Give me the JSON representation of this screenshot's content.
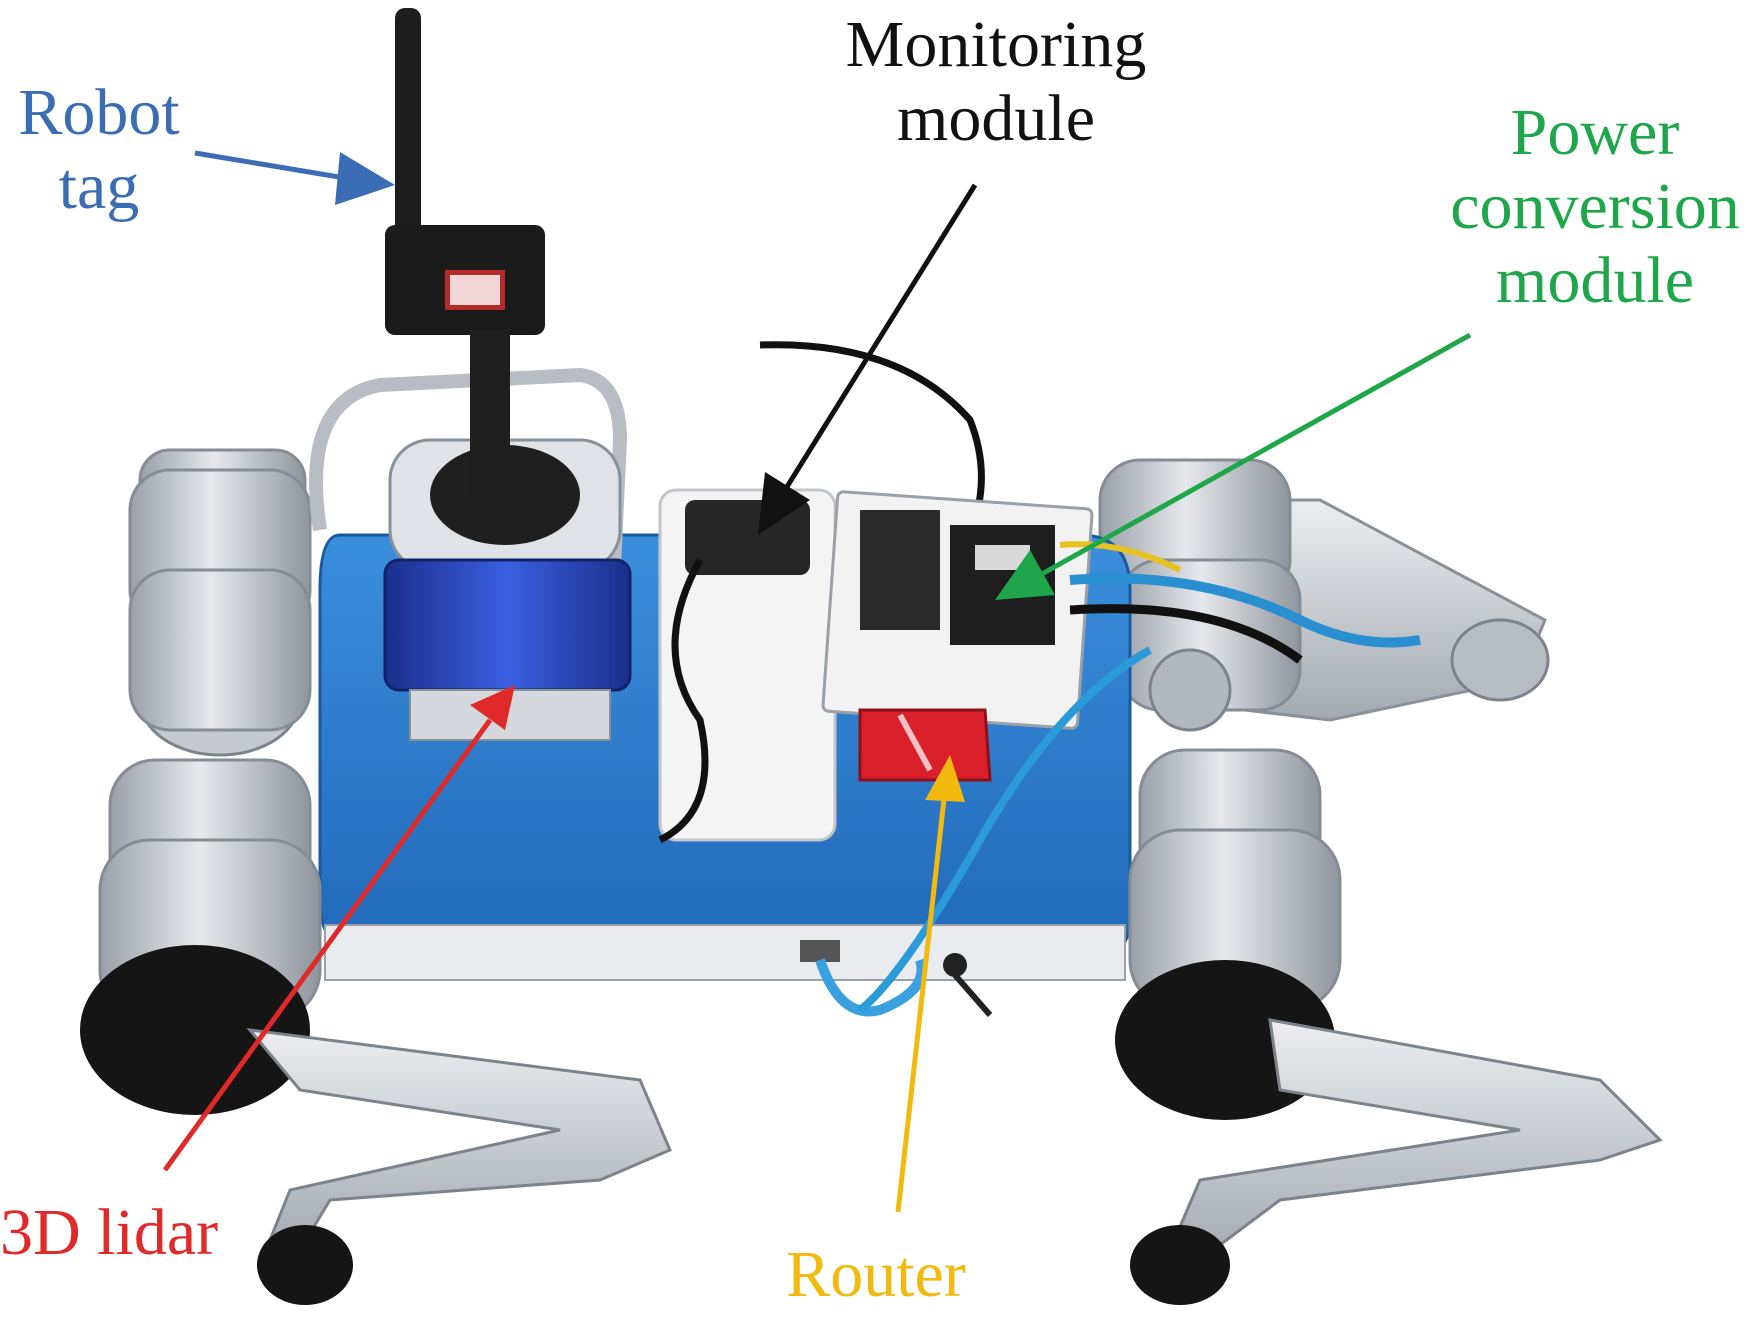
{
  "figure": {
    "subject": "quadruped robot",
    "labels": {
      "robot_tag": {
        "lines": [
          "Robot",
          "tag"
        ],
        "color": "#3a6db3"
      },
      "monitoring_module": {
        "lines": [
          "Monitoring",
          "module"
        ],
        "color": "#111111"
      },
      "power_conversion_module": {
        "lines": [
          "Power",
          "conversion",
          "module"
        ],
        "color": "#1fa64a"
      },
      "lidar_3d": {
        "lines": [
          "3D lidar"
        ],
        "color": "#e02a2a"
      },
      "router": {
        "lines": [
          "Router"
        ],
        "color": "#f2b90f"
      }
    }
  },
  "colors": {
    "body_blue": "#2f7fd0",
    "aluminum": "#c9ccd1",
    "aluminum_dark": "#9aa0a8",
    "foot_black": "#151515",
    "lidar_blue": "#1f3fb0",
    "router_red": "#d81f2a",
    "board_white": "#f2f2f2"
  }
}
